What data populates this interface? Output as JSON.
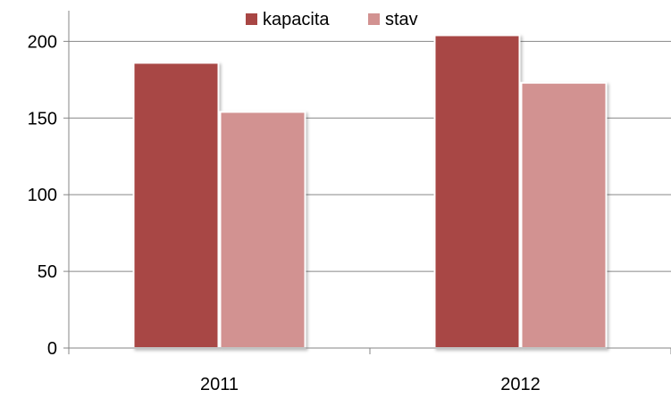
{
  "chart_data": {
    "type": "bar",
    "categories": [
      "2011",
      "2012"
    ],
    "series": [
      {
        "name": "kapacita",
        "values": [
          186,
          204
        ],
        "color": "#a84644"
      },
      {
        "name": "stav",
        "values": [
          154,
          173
        ],
        "color": "#d29291"
      }
    ],
    "yticks": [
      "0",
      "50",
      "100",
      "150",
      "200"
    ],
    "ylim": [
      0,
      220
    ],
    "grid": true,
    "legend_position": "top-center",
    "title": "",
    "xlabel": "",
    "ylabel": ""
  }
}
